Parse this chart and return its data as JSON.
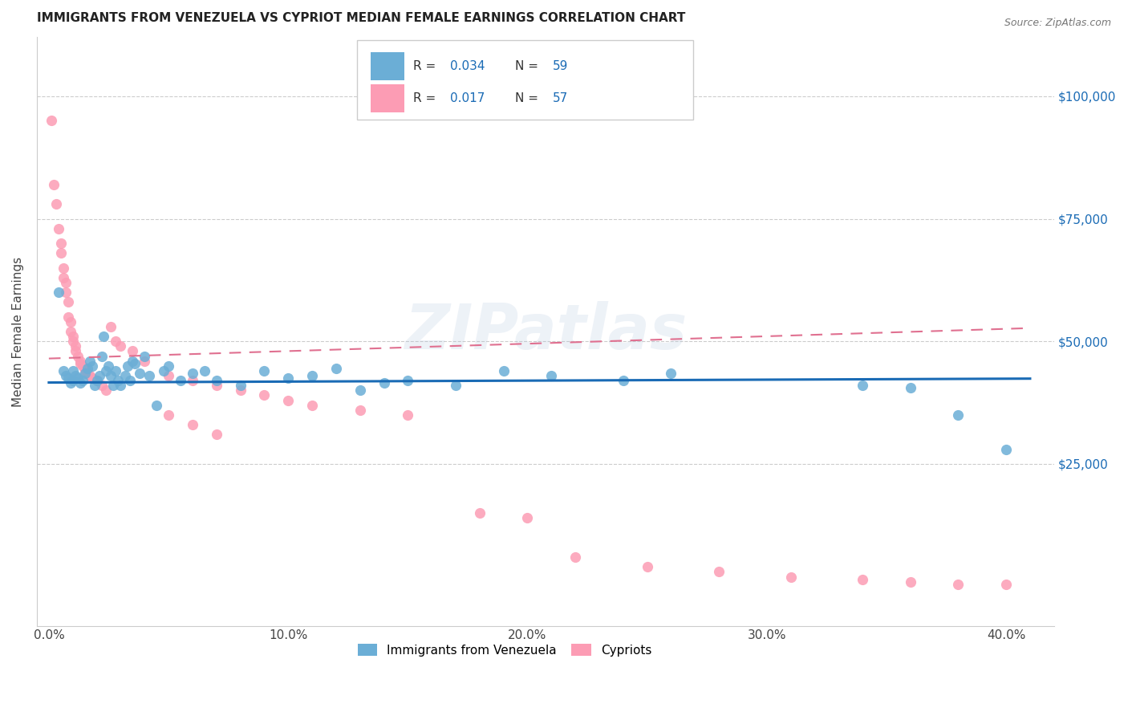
{
  "title": "IMMIGRANTS FROM VENEZUELA VS CYPRIOT MEDIAN FEMALE EARNINGS CORRELATION CHART",
  "source": "Source: ZipAtlas.com",
  "ylabel": "Median Female Earnings",
  "xlim": [
    -0.005,
    0.42
  ],
  "ylim": [
    -8000,
    112000
  ],
  "legend_r1": "0.034",
  "legend_n1": "59",
  "legend_r2": "0.017",
  "legend_n2": "57",
  "blue_color": "#6baed6",
  "pink_color": "#fc9cb4",
  "trendline_blue": "#1a6bb5",
  "trendline_pink": "#e07090",
  "watermark": "ZIPatlas",
  "blue_x": [
    0.004,
    0.006,
    0.007,
    0.008,
    0.009,
    0.01,
    0.01,
    0.011,
    0.012,
    0.013,
    0.014,
    0.015,
    0.016,
    0.017,
    0.018,
    0.019,
    0.02,
    0.021,
    0.022,
    0.023,
    0.024,
    0.025,
    0.026,
    0.027,
    0.028,
    0.029,
    0.03,
    0.032,
    0.033,
    0.034,
    0.035,
    0.036,
    0.038,
    0.04,
    0.042,
    0.045,
    0.048,
    0.05,
    0.055,
    0.06,
    0.065,
    0.07,
    0.08,
    0.09,
    0.1,
    0.11,
    0.12,
    0.13,
    0.14,
    0.15,
    0.17,
    0.19,
    0.21,
    0.24,
    0.26,
    0.34,
    0.36,
    0.38,
    0.4
  ],
  "blue_y": [
    60000,
    44000,
    43000,
    42500,
    41500,
    42000,
    44000,
    43000,
    42500,
    41500,
    42000,
    43500,
    44500,
    46000,
    45000,
    41000,
    42000,
    43000,
    47000,
    51000,
    44000,
    45000,
    43000,
    41000,
    44000,
    42000,
    41000,
    43000,
    45000,
    42000,
    46000,
    45500,
    43500,
    47000,
    43000,
    37000,
    44000,
    45000,
    42000,
    43500,
    44000,
    42000,
    41000,
    44000,
    42500,
    43000,
    44500,
    40000,
    41500,
    42000,
    41000,
    44000,
    43000,
    42000,
    43500,
    41000,
    40500,
    35000,
    28000
  ],
  "pink_x": [
    0.001,
    0.002,
    0.003,
    0.004,
    0.005,
    0.005,
    0.006,
    0.006,
    0.007,
    0.007,
    0.008,
    0.008,
    0.009,
    0.009,
    0.01,
    0.01,
    0.011,
    0.011,
    0.012,
    0.013,
    0.013,
    0.014,
    0.015,
    0.015,
    0.016,
    0.017,
    0.018,
    0.02,
    0.022,
    0.024,
    0.026,
    0.028,
    0.03,
    0.035,
    0.04,
    0.05,
    0.06,
    0.07,
    0.08,
    0.09,
    0.1,
    0.11,
    0.13,
    0.15,
    0.18,
    0.2,
    0.22,
    0.25,
    0.28,
    0.31,
    0.34,
    0.36,
    0.38,
    0.4,
    0.05,
    0.06,
    0.07
  ],
  "pink_y": [
    95000,
    82000,
    78000,
    73000,
    70000,
    68000,
    65000,
    63000,
    62000,
    60000,
    58000,
    55000,
    54000,
    52000,
    51000,
    50000,
    49000,
    48000,
    47000,
    46000,
    45500,
    45000,
    44500,
    44000,
    43500,
    43000,
    42500,
    42000,
    41000,
    40000,
    53000,
    50000,
    49000,
    48000,
    46000,
    43000,
    42000,
    41000,
    40000,
    39000,
    38000,
    37000,
    36000,
    35000,
    15000,
    14000,
    6000,
    4000,
    3000,
    2000,
    1500,
    1000,
    500,
    500,
    35000,
    33000,
    31000
  ],
  "blue_trend_x": [
    0.0,
    0.41
  ],
  "blue_trend_y": [
    41600,
    42400
  ],
  "pink_trend_x": [
    0.0,
    0.41
  ],
  "pink_trend_y": [
    46500,
    52700
  ],
  "grid_color": "#cccccc",
  "bg_color": "#ffffff",
  "xtick_vals": [
    0.0,
    0.1,
    0.2,
    0.3,
    0.4
  ],
  "xtick_labels": [
    "0.0%",
    "10.0%",
    "20.0%",
    "30.0%",
    "40.0%"
  ],
  "ytick_vals": [
    25000,
    50000,
    75000,
    100000
  ],
  "ytick_labels": [
    "$25,000",
    "$50,000",
    "$75,000",
    "$100,000"
  ]
}
